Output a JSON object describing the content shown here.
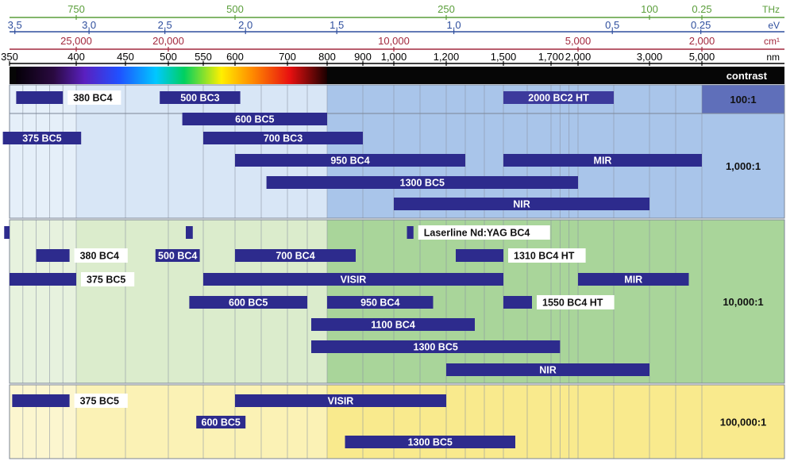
{
  "scales": {
    "thz": {
      "unit": "THz",
      "color": "#5a9e3a",
      "ticks": [
        "750",
        "500",
        "250",
        "100",
        "0.25"
      ]
    },
    "ev": {
      "unit": "eV",
      "color": "#2f4f9e",
      "ticks": [
        "3,5",
        "3,0",
        "2,5",
        "2,0",
        "1,5",
        "1,0",
        "0,5",
        "0.25"
      ]
    },
    "cm": {
      "unit": "cm¹",
      "color": "#a2293e",
      "ticks": [
        "25,000",
        "20,000",
        "10,000",
        "5,000",
        "2,000"
      ]
    },
    "nm": {
      "unit": "nm",
      "color": "#000000",
      "ticks": [
        "350",
        "400",
        "450",
        "500",
        "550",
        "600",
        "700",
        "800",
        "900",
        "1,000",
        "1,200",
        "1,500",
        "1,700",
        "2,000",
        "3,000",
        "5,000"
      ]
    }
  },
  "contrast_label": "contrast",
  "bands": [
    {
      "contrast": "100:1",
      "products": [
        {
          "label": "380 BC4",
          "from": 355,
          "to": 390,
          "label_style": "box"
        },
        {
          "label": "500 BC3",
          "from": 490,
          "to": 610,
          "label_style": "inside"
        },
        {
          "label": "2000 BC2 HT",
          "from": 1500,
          "to": 2500,
          "label_style": "inside"
        }
      ]
    },
    {
      "contrast": "1,000:1",
      "products": [
        {
          "label": "600 BC5",
          "from": 520,
          "to": 800,
          "label_style": "inside"
        },
        {
          "label": "375 BC5",
          "from": 345,
          "to": 405,
          "label_style": "inside"
        },
        {
          "label": "700 BC3",
          "from": 550,
          "to": 900,
          "label_style": "inside"
        },
        {
          "label": "950 BC4",
          "from": 600,
          "to": 1300,
          "label_style": "inside"
        },
        {
          "label": "MIR",
          "from": 1500,
          "to": 5000,
          "label_style": "inside"
        },
        {
          "label": "1300 BC5",
          "from": 660,
          "to": 2000,
          "label_style": "inside"
        },
        {
          "label": "NIR",
          "from": 1000,
          "to": 3000,
          "label_style": "inside"
        }
      ]
    },
    {
      "contrast": "10,000:1",
      "products": [
        {
          "label": "",
          "from": 346,
          "to": 350,
          "label_style": "none"
        },
        {
          "label": "",
          "from": 525,
          "to": 535,
          "label_style": "none"
        },
        {
          "label": "Laserline Nd:YAG BC4",
          "from": 1050,
          "to": 1075,
          "label_style": "box"
        },
        {
          "label": "380 BC4",
          "from": 370,
          "to": 395,
          "label_style": "box"
        },
        {
          "label": "500 BC4",
          "from": 485,
          "to": 545,
          "label_style": "inside"
        },
        {
          "label": "700 BC4",
          "from": 600,
          "to": 880,
          "label_style": "inside"
        },
        {
          "label": "1310 BC4 HT",
          "from": 1250,
          "to": 1500,
          "label_style": "box"
        },
        {
          "label": "375 BC5",
          "from": 350,
          "to": 400,
          "label_style": "box"
        },
        {
          "label": "VISIR",
          "from": 550,
          "to": 1500,
          "label_style": "inside"
        },
        {
          "label": "MIR",
          "from": 2000,
          "to": 4500,
          "label_style": "inside"
        },
        {
          "label": "600 BC5",
          "from": 530,
          "to": 750,
          "label_style": "inside"
        },
        {
          "label": "950 BC4",
          "from": 800,
          "to": 1150,
          "label_style": "inside"
        },
        {
          "label": "1550 BC4 HT",
          "from": 1500,
          "to": 1620,
          "label_style": "box"
        },
        {
          "label": "1100 BC4",
          "from": 760,
          "to": 1350,
          "label_style": "inside"
        },
        {
          "label": "1300 BC5",
          "from": 760,
          "to": 1800,
          "label_style": "inside"
        },
        {
          "label": "NIR",
          "from": 1200,
          "to": 3000,
          "label_style": "inside"
        }
      ]
    },
    {
      "contrast": "100,000:1",
      "products": [
        {
          "label": "375 BC5",
          "from": 352,
          "to": 395,
          "label_style": "box"
        },
        {
          "label": "VISIR",
          "from": 600,
          "to": 1200,
          "label_style": "inside"
        },
        {
          "label": "600 BC5",
          "from": 540,
          "to": 620,
          "label_style": "inside"
        },
        {
          "label": "1300 BC5",
          "from": 850,
          "to": 1550,
          "label_style": "inside"
        }
      ]
    }
  ]
}
